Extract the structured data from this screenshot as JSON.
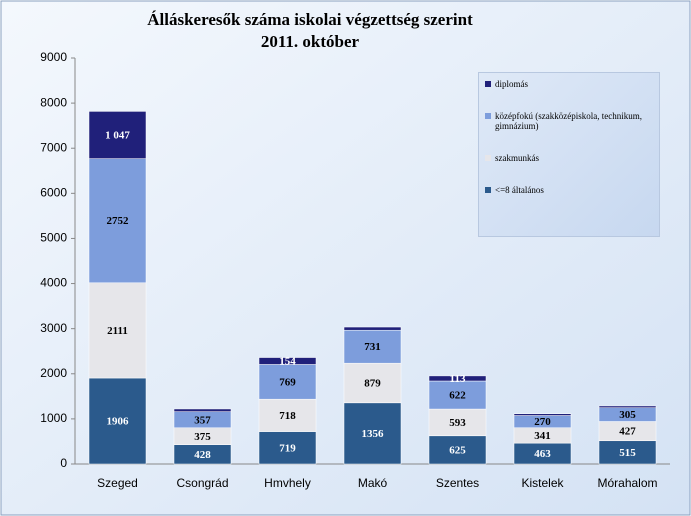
{
  "chart_data": {
    "type": "stacked_bar",
    "title": "Álláskeresők száma iskolai végzettség szerint",
    "subtitle": "2011. október",
    "categories": [
      "Szeged",
      "Csongrád",
      "Hmvhely",
      "Makó",
      "Szentes",
      "Kistelek",
      "Mórahalom"
    ],
    "series": [
      {
        "name": "<=8 általános",
        "color": "#2b5a8c",
        "values": [
          1906,
          428,
          719,
          1356,
          625,
          463,
          515
        ]
      },
      {
        "name": "szakmunkás",
        "color": "#e6e6ea",
        "values": [
          2111,
          375,
          718,
          879,
          593,
          341,
          427
        ]
      },
      {
        "name": "középfokú (szakközépiskola, technikum, gimnázium)",
        "color": "#7d9ddc",
        "values": [
          2752,
          357,
          769,
          731,
          622,
          270,
          305
        ]
      },
      {
        "name": "diplomás",
        "color": "#20207a",
        "values": [
          1047,
          60,
          154,
          70,
          113,
          40,
          40
        ],
        "value_labels": [
          "1 047",
          null,
          "154",
          null,
          "113",
          null,
          null
        ]
      }
    ],
    "ylim": [
      0,
      9000
    ],
    "yticks": [
      0,
      1000,
      2000,
      3000,
      4000,
      5000,
      6000,
      7000,
      8000,
      9000
    ],
    "legend": "upper right",
    "grid": false
  }
}
